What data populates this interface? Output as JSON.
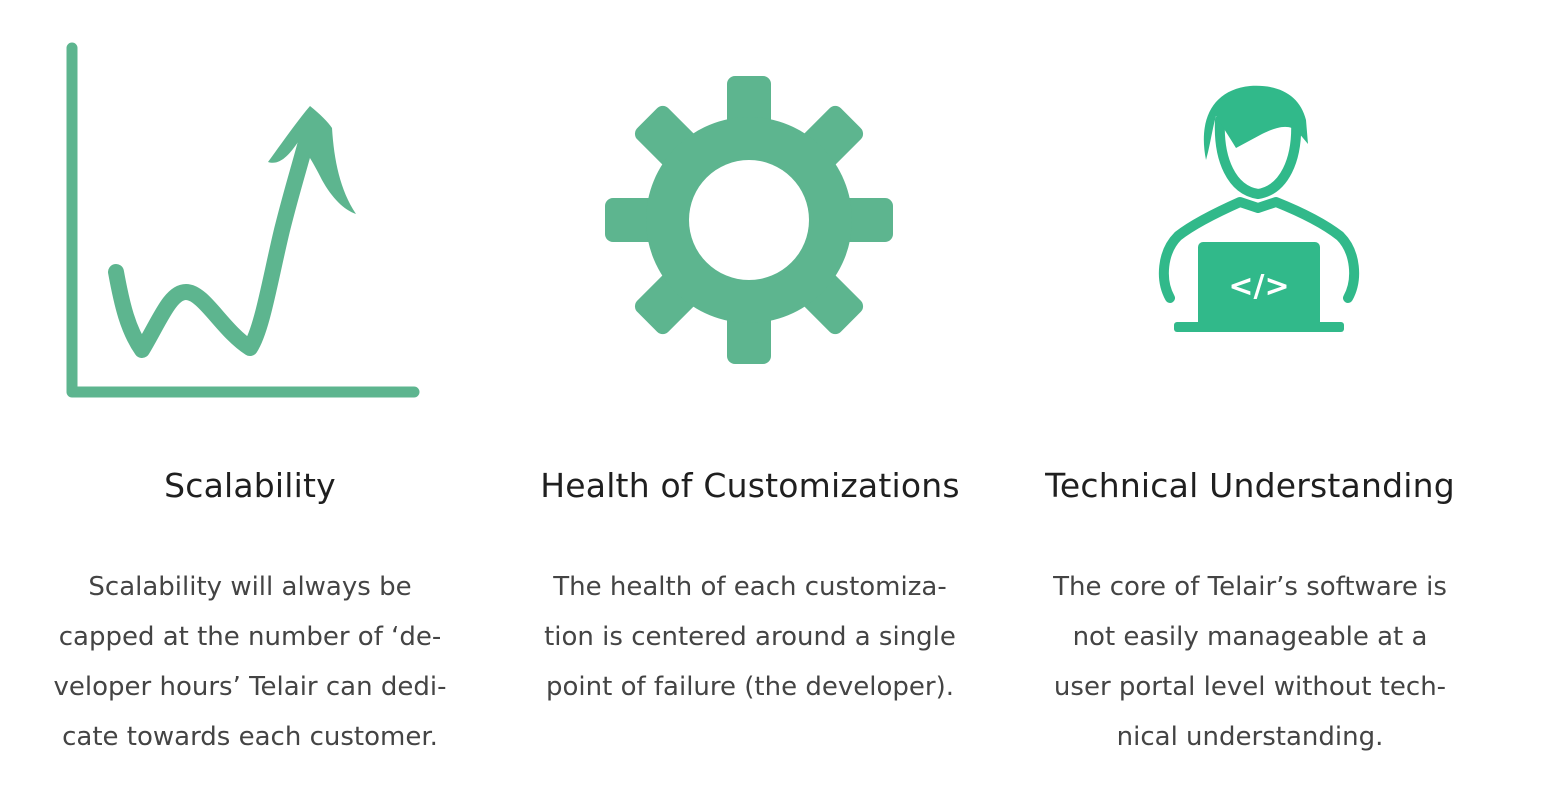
{
  "colors": {
    "icon_green": "#5db58f",
    "icon_teal": "#31b98a",
    "title_text": "#1f1f1f",
    "body_text": "#444444"
  },
  "features": [
    {
      "icon": "growth-chart-icon",
      "title": "Scalability",
      "description_lines": [
        "Scalability will always be",
        "capped at the number of ‘de-",
        "veloper hours’ Telair can dedi-",
        "cate towards each customer."
      ]
    },
    {
      "icon": "gear-icon",
      "title": "Health of Customizations",
      "description_lines": [
        "The health of each customiza-",
        "tion is centered around a single",
        "point of failure (the developer)."
      ]
    },
    {
      "icon": "developer-laptop-icon",
      "laptop_glyph": "</>",
      "title": "Technical Understanding",
      "description_lines": [
        "The core of Telair’s software is",
        "not easily manageable at a",
        "user portal level without tech-",
        "nical understanding."
      ]
    }
  ]
}
